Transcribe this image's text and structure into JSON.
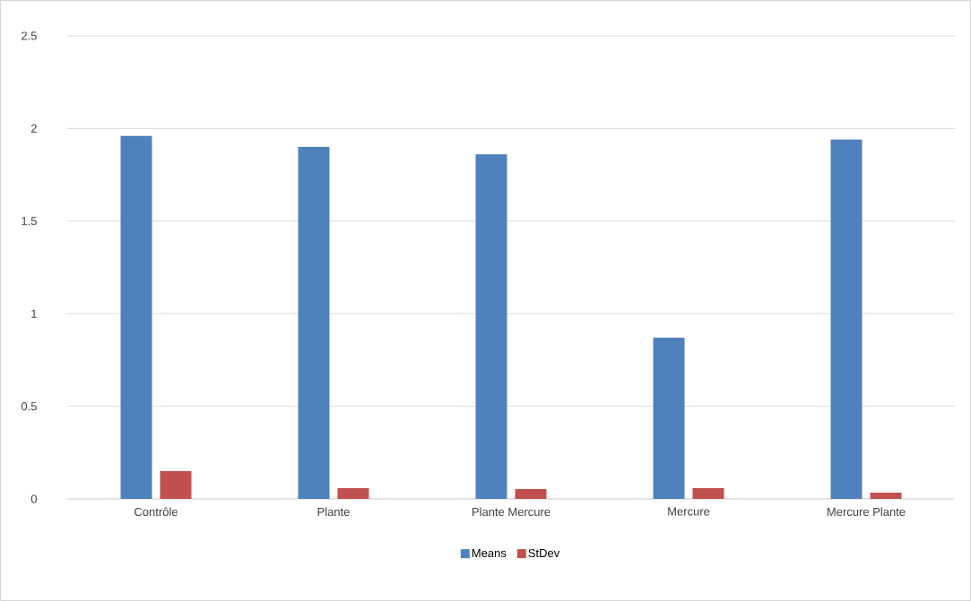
{
  "chart_data": {
    "type": "bar",
    "categories": [
      "Contrôle",
      "Plante",
      "Plante Mercure",
      "Mercure",
      "Mercure Plante"
    ],
    "series": [
      {
        "name": "Means",
        "color": "#4f81bd",
        "values": [
          1.96,
          1.9,
          1.86,
          0.87,
          1.94
        ]
      },
      {
        "name": "StDev",
        "color": "#c0504d",
        "values": [
          0.15,
          0.058,
          0.053,
          0.058,
          0.034
        ]
      }
    ],
    "ylim": [
      0,
      2.5
    ],
    "yticks": [
      0,
      0.5,
      1,
      1.5,
      2,
      2.5
    ],
    "grid": "y",
    "legend": "bottom"
  }
}
